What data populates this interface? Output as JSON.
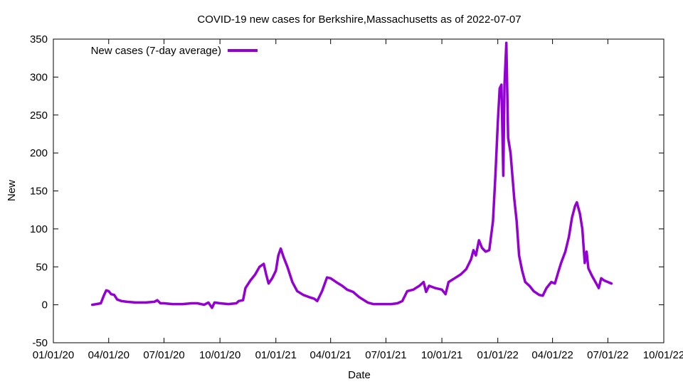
{
  "chart_data": {
    "type": "line",
    "title": "COVID-19 new cases for Berkshire,Massachusetts as of 2022-07-07",
    "xlabel": "Date",
    "ylabel": "New",
    "xlim": [
      "2020-01-01",
      "2022-10-01"
    ],
    "ylim": [
      -50,
      350
    ],
    "x_ticks": [
      "01/01/20",
      "04/01/20",
      "07/01/20",
      "10/01/20",
      "01/01/21",
      "04/01/21",
      "07/01/21",
      "10/01/21",
      "01/01/22",
      "04/01/22",
      "07/01/22",
      "10/01/22"
    ],
    "y_ticks": [
      "-50",
      "0",
      "50",
      "100",
      "150",
      "200",
      "250",
      "300",
      "350"
    ],
    "grid": false,
    "legend_position": "top-left",
    "line_color": "#9400d3",
    "series": [
      {
        "name": "New cases (7-day average)",
        "points": [
          [
            "2020-03-05",
            0
          ],
          [
            "2020-03-12",
            1
          ],
          [
            "2020-03-19",
            2
          ],
          [
            "2020-03-24",
            12
          ],
          [
            "2020-03-28",
            19
          ],
          [
            "2020-04-01",
            18
          ],
          [
            "2020-04-05",
            14
          ],
          [
            "2020-04-10",
            13
          ],
          [
            "2020-04-15",
            7
          ],
          [
            "2020-04-22",
            5
          ],
          [
            "2020-05-01",
            4
          ],
          [
            "2020-05-15",
            3
          ],
          [
            "2020-06-01",
            3
          ],
          [
            "2020-06-15",
            4
          ],
          [
            "2020-06-20",
            6
          ],
          [
            "2020-06-25",
            2
          ],
          [
            "2020-07-01",
            2
          ],
          [
            "2020-07-15",
            1
          ],
          [
            "2020-08-01",
            1
          ],
          [
            "2020-08-15",
            2
          ],
          [
            "2020-08-25",
            2
          ],
          [
            "2020-09-05",
            0
          ],
          [
            "2020-09-12",
            3
          ],
          [
            "2020-09-18",
            -4
          ],
          [
            "2020-09-22",
            3
          ],
          [
            "2020-10-01",
            2
          ],
          [
            "2020-10-15",
            1
          ],
          [
            "2020-10-28",
            2
          ],
          [
            "2020-11-01",
            5
          ],
          [
            "2020-11-08",
            6
          ],
          [
            "2020-11-12",
            22
          ],
          [
            "2020-11-20",
            32
          ],
          [
            "2020-11-28",
            40
          ],
          [
            "2020-12-05",
            50
          ],
          [
            "2020-12-12",
            54
          ],
          [
            "2020-12-16",
            40
          ],
          [
            "2020-12-20",
            28
          ],
          [
            "2020-12-26",
            35
          ],
          [
            "2021-01-01",
            45
          ],
          [
            "2021-01-05",
            65
          ],
          [
            "2021-01-09",
            74
          ],
          [
            "2021-01-14",
            62
          ],
          [
            "2021-01-20",
            50
          ],
          [
            "2021-01-28",
            30
          ],
          [
            "2021-02-05",
            18
          ],
          [
            "2021-02-15",
            13
          ],
          [
            "2021-02-25",
            10
          ],
          [
            "2021-03-05",
            8
          ],
          [
            "2021-03-10",
            5
          ],
          [
            "2021-03-18",
            18
          ],
          [
            "2021-03-26",
            36
          ],
          [
            "2021-04-01",
            35
          ],
          [
            "2021-04-10",
            30
          ],
          [
            "2021-04-20",
            25
          ],
          [
            "2021-04-28",
            20
          ],
          [
            "2021-05-08",
            17
          ],
          [
            "2021-05-18",
            10
          ],
          [
            "2021-06-01",
            3
          ],
          [
            "2021-06-10",
            1
          ],
          [
            "2021-06-25",
            1
          ],
          [
            "2021-07-10",
            1
          ],
          [
            "2021-07-20",
            2
          ],
          [
            "2021-07-28",
            5
          ],
          [
            "2021-08-05",
            18
          ],
          [
            "2021-08-15",
            20
          ],
          [
            "2021-08-25",
            25
          ],
          [
            "2021-09-01",
            30
          ],
          [
            "2021-09-05",
            17
          ],
          [
            "2021-09-10",
            25
          ],
          [
            "2021-09-20",
            22
          ],
          [
            "2021-10-01",
            20
          ],
          [
            "2021-10-07",
            14
          ],
          [
            "2021-10-12",
            30
          ],
          [
            "2021-10-22",
            35
          ],
          [
            "2021-11-01",
            40
          ],
          [
            "2021-11-10",
            47
          ],
          [
            "2021-11-18",
            60
          ],
          [
            "2021-11-22",
            72
          ],
          [
            "2021-11-26",
            65
          ],
          [
            "2021-12-01",
            85
          ],
          [
            "2021-12-06",
            75
          ],
          [
            "2021-12-12",
            70
          ],
          [
            "2021-12-18",
            72
          ],
          [
            "2021-12-24",
            110
          ],
          [
            "2021-12-28",
            170
          ],
          [
            "2022-01-01",
            240
          ],
          [
            "2022-01-04",
            285
          ],
          [
            "2022-01-07",
            290
          ],
          [
            "2022-01-10",
            170
          ],
          [
            "2022-01-12",
            290
          ],
          [
            "2022-01-15",
            345
          ],
          [
            "2022-01-18",
            220
          ],
          [
            "2022-01-22",
            200
          ],
          [
            "2022-01-28",
            140
          ],
          [
            "2022-02-01",
            110
          ],
          [
            "2022-02-05",
            65
          ],
          [
            "2022-02-10",
            45
          ],
          [
            "2022-02-15",
            30
          ],
          [
            "2022-02-22",
            25
          ],
          [
            "2022-03-01",
            18
          ],
          [
            "2022-03-10",
            13
          ],
          [
            "2022-03-16",
            12
          ],
          [
            "2022-03-22",
            22
          ],
          [
            "2022-03-30",
            30
          ],
          [
            "2022-04-05",
            28
          ],
          [
            "2022-04-10",
            42
          ],
          [
            "2022-04-15",
            55
          ],
          [
            "2022-04-22",
            70
          ],
          [
            "2022-04-28",
            90
          ],
          [
            "2022-05-03",
            115
          ],
          [
            "2022-05-08",
            130
          ],
          [
            "2022-05-11",
            135
          ],
          [
            "2022-05-16",
            120
          ],
          [
            "2022-05-20",
            100
          ],
          [
            "2022-05-24",
            55
          ],
          [
            "2022-05-27",
            70
          ],
          [
            "2022-05-30",
            48
          ],
          [
            "2022-06-05",
            38
          ],
          [
            "2022-06-12",
            28
          ],
          [
            "2022-06-16",
            22
          ],
          [
            "2022-06-20",
            35
          ],
          [
            "2022-06-25",
            32
          ],
          [
            "2022-07-01",
            30
          ],
          [
            "2022-07-07",
            28
          ]
        ]
      }
    ]
  }
}
